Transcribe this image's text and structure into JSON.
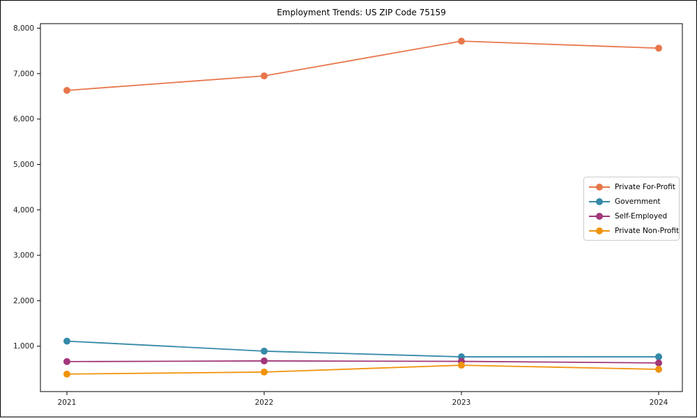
{
  "figure": {
    "title": "Employment Trends: US ZIP Code 75159"
  },
  "chart_data": {
    "type": "line",
    "title": "Employment Trends: US ZIP Code 75159",
    "x": [
      2021,
      2022,
      2023,
      2024
    ],
    "x_tick_labels": [
      "2021",
      "2022",
      "2023",
      "2024"
    ],
    "series": [
      {
        "name": "Private For-Profit",
        "color": "#E8764B",
        "values": [
          6630,
          6950,
          7715,
          7560
        ]
      },
      {
        "name": "Government",
        "color": "#3589A8",
        "values": [
          1110,
          890,
          765,
          765
        ]
      },
      {
        "name": "Self-Employed",
        "color": "#A23779",
        "values": [
          660,
          675,
          665,
          630
        ]
      },
      {
        "name": "Private Non-Profit",
        "color": "#F0930D",
        "values": [
          385,
          430,
          580,
          490
        ]
      }
    ],
    "ylim": [
      0,
      8100
    ],
    "yticks": [
      1000,
      2000,
      3000,
      4000,
      5000,
      6000,
      7000,
      8000
    ],
    "y_tick_labels": [
      "1,000",
      "2,000",
      "3,000",
      "4,000",
      "5,000",
      "6,000",
      "7,000",
      "8,000"
    ],
    "xlabel": "",
    "ylabel": "",
    "grid": false,
    "legend_position": "center right",
    "marker": "circle",
    "axis_color": "#000000",
    "tick_label_color": "#1a1a1a"
  }
}
